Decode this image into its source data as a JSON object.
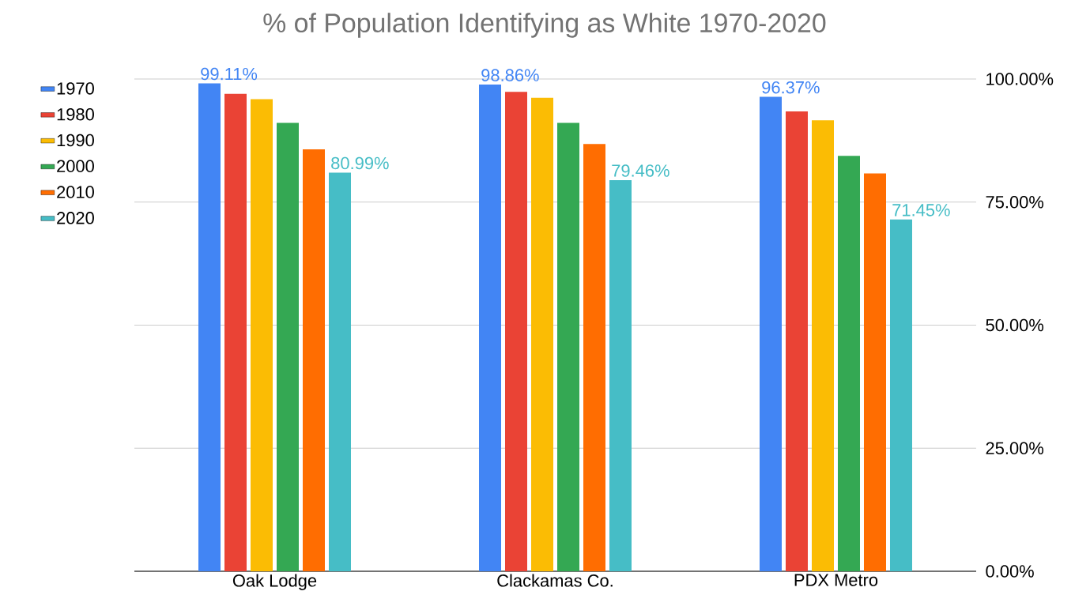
{
  "chart_data": {
    "type": "bar",
    "title": "% of Population Identifying as White 1970-2020",
    "categories": [
      "Oak Lodge",
      "Clackamas Co.",
      "PDX Metro"
    ],
    "series": [
      {
        "name": "1970",
        "color": "#4285f4",
        "values": [
          99.11,
          98.86,
          96.37
        ],
        "value_labels": [
          "99.11%",
          "98.86%",
          "96.37%"
        ]
      },
      {
        "name": "1980",
        "color": "#ea4335",
        "values": [
          97.0,
          97.4,
          93.4
        ]
      },
      {
        "name": "1990",
        "color": "#fbbc04",
        "values": [
          95.9,
          96.2,
          91.6
        ]
      },
      {
        "name": "2000",
        "color": "#34a853",
        "values": [
          91.1,
          91.1,
          84.4
        ]
      },
      {
        "name": "2010",
        "color": "#ff6d01",
        "values": [
          85.7,
          86.8,
          80.8
        ]
      },
      {
        "name": "2020",
        "color": "#46bdc6",
        "values": [
          80.99,
          79.46,
          71.45
        ],
        "value_labels": [
          "80.99%",
          "79.46%",
          "71.45%"
        ]
      }
    ],
    "ylim": [
      0,
      100
    ],
    "yticks": [
      {
        "value": 0,
        "label": "0.00%"
      },
      {
        "value": 25,
        "label": "25.00%"
      },
      {
        "value": 50,
        "label": "50.00%"
      },
      {
        "value": 75,
        "label": "75.00%"
      },
      {
        "value": 100,
        "label": "100.00%"
      }
    ],
    "grid": "y",
    "legend": "left"
  }
}
